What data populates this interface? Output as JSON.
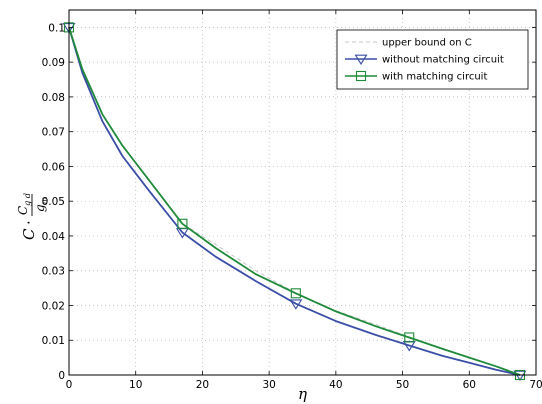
{
  "chart_data": {
    "type": "line",
    "xlabel": "η",
    "ylabel": {
      "main": "C",
      "dot": "·",
      "numerator": "C",
      "numerator_sub": "g d",
      "denominator": "g",
      "denominator_sub": "m"
    },
    "xlim": [
      0,
      70
    ],
    "ylim": [
      0,
      0.105
    ],
    "xticks": [
      0,
      10,
      20,
      30,
      40,
      50,
      60,
      70
    ],
    "yticks": [
      0,
      0.01,
      0.02,
      0.03,
      0.04,
      0.05,
      0.06,
      0.07,
      0.08,
      0.09,
      0.1
    ],
    "xtick_labels": [
      "0",
      "10",
      "20",
      "30",
      "40",
      "50",
      "60",
      "70"
    ],
    "ytick_labels": [
      "0",
      "0.01",
      "0.02",
      "0.03",
      "0.04",
      "0.05",
      "0.06",
      "0.07",
      "0.08",
      "0.09",
      "0.1"
    ],
    "grid": true,
    "legend_placement": "top-right",
    "series": [
      {
        "name": "upper bound on C",
        "color": "#c8c8c8",
        "linestyle": "dashed",
        "marker": "none",
        "x": [
          0,
          2,
          5,
          8,
          12,
          17,
          22,
          28,
          34,
          40,
          46,
          51,
          56,
          60,
          64,
          67.6
        ],
        "y": [
          0.1,
          0.088,
          0.075,
          0.066,
          0.056,
          0.0435,
          0.0375,
          0.03,
          0.0236,
          0.0185,
          0.0145,
          0.011,
          0.0075,
          0.005,
          0.0025,
          0.0
        ]
      },
      {
        "name": "without matching circuit",
        "color": "#3a4ea8",
        "linestyle": "solid",
        "marker": "triangle-down",
        "x": [
          0,
          2,
          5,
          8,
          12,
          17,
          22,
          28,
          34,
          40,
          46,
          51,
          56,
          60,
          64,
          67.6
        ],
        "y": [
          0.1,
          0.087,
          0.073,
          0.063,
          0.053,
          0.041,
          0.034,
          0.027,
          0.0205,
          0.0155,
          0.0115,
          0.0085,
          0.0055,
          0.0035,
          0.0015,
          0.0
        ],
        "marker_x": [
          0,
          17,
          34,
          51,
          67.6
        ],
        "marker_y": [
          0.1,
          0.041,
          0.0205,
          0.0085,
          0.0
        ]
      },
      {
        "name": "with matching circuit",
        "color": "#1f8a3a",
        "linestyle": "solid",
        "marker": "square",
        "x": [
          0,
          2,
          5,
          8,
          12,
          17,
          22,
          28,
          34,
          40,
          46,
          51,
          56,
          60,
          64,
          67.6
        ],
        "y": [
          0.1,
          0.088,
          0.075,
          0.066,
          0.056,
          0.0435,
          0.0365,
          0.029,
          0.0235,
          0.0183,
          0.014,
          0.0108,
          0.0075,
          0.005,
          0.0025,
          0.0
        ],
        "marker_x": [
          0,
          17,
          34,
          51,
          67.6
        ],
        "marker_y": [
          0.1,
          0.0435,
          0.0235,
          0.0108,
          0.0
        ]
      }
    ]
  }
}
